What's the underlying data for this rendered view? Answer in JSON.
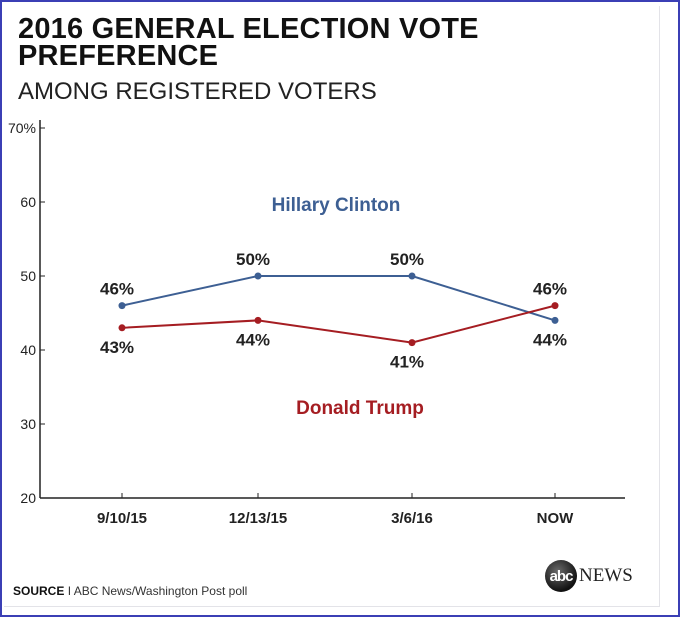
{
  "chart_data": {
    "type": "line",
    "title": "2016 GENERAL ELECTION VOTE PREFERENCE",
    "subtitle": "AMONG REGISTERED VOTERS",
    "categories": [
      "9/10/15",
      "12/13/15",
      "3/6/16",
      "NOW"
    ],
    "ylim": [
      20,
      70
    ],
    "yticks": [
      "70%",
      "60",
      "50",
      "40",
      "30",
      "20"
    ],
    "grid": false,
    "series": [
      {
        "name": "Hillary Clinton",
        "color": "#3d5f93",
        "values": [
          46,
          50,
          50,
          44
        ],
        "labels": [
          "46%",
          "50%",
          "50%",
          "44%"
        ]
      },
      {
        "name": "Donald Trump",
        "color": "#a51d22",
        "values": [
          43,
          44,
          41,
          46
        ],
        "labels": [
          "43%",
          "44%",
          "41%",
          "46%"
        ]
      }
    ]
  },
  "footer": {
    "source_label": "SOURCE",
    "source_text": "I ABC News/Washington Post poll",
    "logo_text": "abcNEWS"
  }
}
